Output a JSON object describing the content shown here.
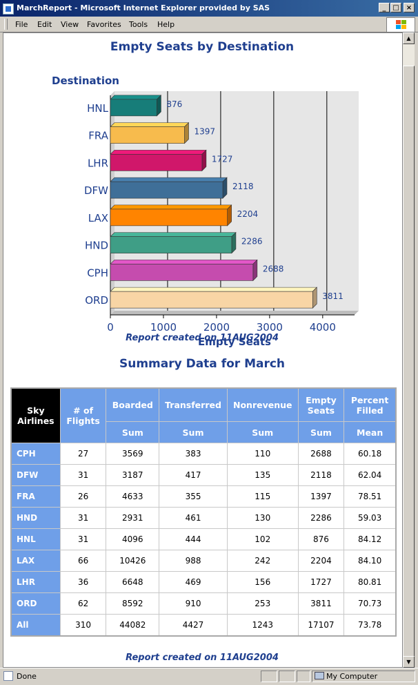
{
  "window": {
    "title": "MarchReport - Microsoft Internet Explorer provided by SAS",
    "min_symbol": "_",
    "max_symbol": "□",
    "close_symbol": "×"
  },
  "menu": [
    "File",
    "Edit",
    "View",
    "Favorites",
    "Tools",
    "Help"
  ],
  "statusbar": {
    "status": "Done",
    "zone": "My Computer"
  },
  "chart_data": {
    "type": "bar",
    "orientation": "horizontal",
    "title": "Empty Seats by Destination",
    "ylabel": "Destination",
    "xlabel": "Empty Seats",
    "categories": [
      "HNL",
      "FRA",
      "LHR",
      "DFW",
      "LAX",
      "HND",
      "CPH",
      "ORD"
    ],
    "values": [
      876,
      1397,
      1727,
      2118,
      2204,
      2286,
      2688,
      3811
    ],
    "data_labels": [
      "876",
      "1397",
      "1727",
      "2118",
      "2204",
      "2286",
      "2688",
      "3811"
    ],
    "colors": [
      "#177d79",
      "#f7bb4d",
      "#d0176a",
      "#3f6f98",
      "#ff8400",
      "#3f9e86",
      "#c54cae",
      "#f8d5a5"
    ],
    "xlim": [
      0,
      4600
    ],
    "x_ticks": [
      0,
      1000,
      2000,
      3000,
      4000
    ],
    "x_tick_labels": [
      "0",
      "1000",
      "2000",
      "3000",
      "4000"
    ],
    "grid": true,
    "style": "3d"
  },
  "chart_footnote": "Report created on 11AUG2004",
  "summary": {
    "title": "Summary Data for March",
    "corner_header": [
      "Sky",
      "Airlines"
    ],
    "headers": [
      {
        "label": [
          "# of",
          "Flights"
        ],
        "stat": ""
      },
      {
        "label": [
          "Boarded"
        ],
        "stat": "Sum"
      },
      {
        "label": [
          "Transferred"
        ],
        "stat": "Sum"
      },
      {
        "label": [
          "Nonrevenue"
        ],
        "stat": "Sum"
      },
      {
        "label": [
          "Empty",
          "Seats"
        ],
        "stat": "Sum"
      },
      {
        "label": [
          "Percent",
          "Filled"
        ],
        "stat": "Mean"
      }
    ],
    "rows": [
      [
        "CPH",
        "27",
        "3569",
        "383",
        "110",
        "2688",
        "60.18"
      ],
      [
        "DFW",
        "31",
        "3187",
        "417",
        "135",
        "2118",
        "62.04"
      ],
      [
        "FRA",
        "26",
        "4633",
        "355",
        "115",
        "1397",
        "78.51"
      ],
      [
        "HND",
        "31",
        "2931",
        "461",
        "130",
        "2286",
        "59.03"
      ],
      [
        "HNL",
        "31",
        "4096",
        "444",
        "102",
        "876",
        "84.12"
      ],
      [
        "LAX",
        "66",
        "10426",
        "988",
        "242",
        "2204",
        "84.10"
      ],
      [
        "LHR",
        "36",
        "6648",
        "469",
        "156",
        "1727",
        "80.81"
      ],
      [
        "ORD",
        "62",
        "8592",
        "910",
        "253",
        "3811",
        "70.73"
      ],
      [
        "All",
        "310",
        "44082",
        "4427",
        "1243",
        "17107",
        "73.78"
      ]
    ],
    "footnote": "Report created on 11AUG2004"
  }
}
